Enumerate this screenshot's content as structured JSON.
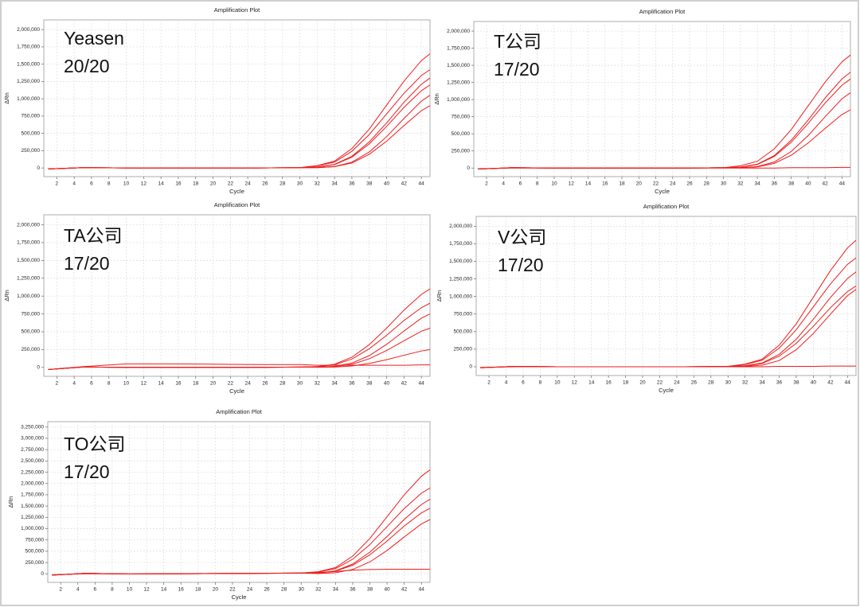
{
  "chart_data": [
    {
      "type": "line",
      "title": "Amplification Plot",
      "x_label": "Cycle",
      "y_label": "ΔRn",
      "annotations": [
        "Yeasen",
        "20/20"
      ],
      "xlim": [
        0.5,
        45
      ],
      "ylim": [
        -125000,
        2140000
      ],
      "grid": true,
      "xticks": [
        2,
        4,
        6,
        8,
        10,
        12,
        14,
        16,
        18,
        20,
        22,
        24,
        26,
        28,
        30,
        32,
        34,
        36,
        38,
        40,
        42,
        44
      ],
      "yticks": [
        0,
        {
          "value": 250000,
          "label": "250,000"
        },
        {
          "value": 500000,
          "label": "500,000"
        },
        {
          "value": 750000,
          "label": "750,000"
        },
        {
          "value": 1000000,
          "label": "1,000,000"
        },
        {
          "value": 1250000,
          "label": "1,250,000"
        },
        {
          "value": 1500000,
          "label": "1,500,000"
        },
        {
          "value": 1750000,
          "label": "1,750,000"
        },
        {
          "value": 2000000,
          "label": "2,000,000"
        }
      ],
      "x": [
        1,
        5,
        10,
        15,
        20,
        25,
        30,
        32,
        34,
        36,
        38,
        40,
        42,
        44,
        45
      ],
      "series": [
        {
          "color": "#ee1c1c",
          "values": [
            -15000,
            5000,
            0,
            0,
            0,
            0,
            5000,
            33000,
            99000,
            280000,
            561000,
            908000,
            1254000,
            1551000,
            1650000
          ]
        },
        {
          "color": "#ee1c1c",
          "values": [
            -15000,
            5000,
            0,
            0,
            0,
            0,
            5000,
            28000,
            85000,
            241000,
            483000,
            781000,
            1079000,
            1335000,
            1420000
          ]
        },
        {
          "color": "#ee1c1c",
          "values": [
            -15000,
            5000,
            0,
            0,
            0,
            0,
            5000,
            13000,
            52000,
            169000,
            377000,
            650000,
            949000,
            1209000,
            1300000
          ]
        },
        {
          "color": "#ee1c1c",
          "values": [
            -15000,
            5000,
            0,
            0,
            0,
            0,
            5000,
            12000,
            48000,
            156000,
            348000,
            600000,
            876000,
            1116000,
            1200000
          ]
        },
        {
          "color": "#ee1c1c",
          "values": [
            -15000,
            5000,
            0,
            0,
            0,
            0,
            5000,
            5000,
            21000,
            84000,
            231000,
            452000,
            714000,
            966000,
            1050000
          ]
        },
        {
          "color": "#ee1c1c",
          "values": [
            -15000,
            5000,
            0,
            0,
            0,
            0,
            5000,
            4500,
            18000,
            72000,
            198000,
            387000,
            612000,
            828000,
            900000
          ]
        }
      ]
    },
    {
      "type": "line",
      "title": "Amplification Plot",
      "x_label": "Cycle",
      "y_label": "ΔRn",
      "annotations": [
        "T公司",
        "17/20"
      ],
      "xlim": [
        0.5,
        45
      ],
      "ylim": [
        -125000,
        2140000
      ],
      "grid": true,
      "xticks": [
        2,
        4,
        6,
        8,
        10,
        12,
        14,
        16,
        18,
        20,
        22,
        24,
        26,
        28,
        30,
        32,
        34,
        36,
        38,
        40,
        42,
        44
      ],
      "yticks": [
        0,
        {
          "value": 250000,
          "label": "250,000"
        },
        {
          "value": 500000,
          "label": "500,000"
        },
        {
          "value": 750000,
          "label": "750,000"
        },
        {
          "value": 1000000,
          "label": "1,000,000"
        },
        {
          "value": 1250000,
          "label": "1,250,000"
        },
        {
          "value": 1500000,
          "label": "1,500,000"
        },
        {
          "value": 1750000,
          "label": "1,750,000"
        },
        {
          "value": 2000000,
          "label": "2,000,000"
        }
      ],
      "x": [
        1,
        5,
        10,
        15,
        20,
        25,
        30,
        32,
        34,
        36,
        38,
        40,
        42,
        44,
        45
      ],
      "series": [
        {
          "color": "#ee1c1c",
          "values": [
            -15000,
            5000,
            0,
            0,
            0,
            0,
            5000,
            33000,
            99000,
            280000,
            561000,
            908000,
            1254000,
            1551000,
            1650000
          ]
        },
        {
          "color": "#ee1c1c",
          "values": [
            -15000,
            5000,
            0,
            0,
            0,
            0,
            5000,
            14000,
            56000,
            182000,
            406000,
            700000,
            1022000,
            1302000,
            1400000
          ]
        },
        {
          "color": "#ee1c1c",
          "values": [
            -15000,
            5000,
            0,
            0,
            0,
            0,
            5000,
            13000,
            52000,
            169000,
            377000,
            650000,
            949000,
            1209000,
            1300000
          ]
        },
        {
          "color": "#ee1c1c",
          "values": [
            -15000,
            5000,
            0,
            0,
            0,
            0,
            5000,
            5500,
            22000,
            88000,
            242000,
            473000,
            748000,
            1012000,
            1100000
          ]
        },
        {
          "color": "#ee1c1c",
          "values": [
            -15000,
            5000,
            0,
            0,
            0,
            0,
            5000,
            4250,
            17000,
            68000,
            187000,
            366000,
            578000,
            782000,
            850000
          ]
        },
        {
          "color": "#ee1c1c",
          "values": [
            -10000,
            0,
            0,
            0,
            0,
            0,
            0,
            0,
            0,
            0,
            5000,
            5000,
            5000,
            10000,
            10000
          ]
        }
      ]
    },
    {
      "type": "line",
      "title": "Amplification Plot",
      "x_label": "Cycle",
      "y_label": "ΔRn",
      "annotations": [
        "TA公司",
        "17/20"
      ],
      "xlim": [
        0.5,
        45
      ],
      "ylim": [
        -125000,
        2140000
      ],
      "grid": true,
      "xticks": [
        2,
        4,
        6,
        8,
        10,
        12,
        14,
        16,
        18,
        20,
        22,
        24,
        26,
        28,
        30,
        32,
        34,
        36,
        38,
        40,
        42,
        44
      ],
      "yticks": [
        0,
        {
          "value": 250000,
          "label": "250,000"
        },
        {
          "value": 500000,
          "label": "500,000"
        },
        {
          "value": 750000,
          "label": "750,000"
        },
        {
          "value": 1000000,
          "label": "1,000,000"
        },
        {
          "value": 1250000,
          "label": "1,250,000"
        },
        {
          "value": 1500000,
          "label": "1,500,000"
        },
        {
          "value": 1750000,
          "label": "1,750,000"
        },
        {
          "value": 2000000,
          "label": "2,000,000"
        }
      ],
      "x": [
        1,
        5,
        10,
        15,
        20,
        25,
        30,
        32,
        34,
        36,
        38,
        40,
        42,
        44,
        45
      ],
      "series": [
        {
          "color": "#ee1c1c",
          "values": [
            -30000,
            5000,
            0,
            0,
            0,
            0,
            5000,
            11000,
            44000,
            143000,
            319000,
            550000,
            803000,
            1023000,
            1100000
          ]
        },
        {
          "color": "#ee1c1c",
          "values": [
            -30000,
            5000,
            0,
            0,
            0,
            0,
            5000,
            9000,
            36000,
            117000,
            261000,
            450000,
            657000,
            837000,
            900000
          ]
        },
        {
          "color": "#ee1c1c",
          "values": [
            -30000,
            5000,
            0,
            0,
            0,
            0,
            5000,
            3750,
            15000,
            60000,
            165000,
            323000,
            510000,
            690000,
            750000
          ]
        },
        {
          "color": "#ee1c1c",
          "values": [
            -30000,
            5000,
            0,
            0,
            0,
            0,
            5000,
            2750,
            11000,
            44000,
            121000,
            237000,
            374000,
            506000,
            550000
          ]
        },
        {
          "color": "#ee1c1c",
          "values": [
            -30000,
            5000,
            0,
            0,
            0,
            0,
            5000,
            1250,
            5000,
            20000,
            55000,
            108000,
            170000,
            230000,
            250000
          ]
        },
        {
          "color": "#ee1c1c",
          "values": [
            -30000,
            10000,
            50000,
            50000,
            45000,
            40000,
            40000,
            30000,
            30000,
            30000,
            30000,
            30000,
            30000,
            35000,
            35000
          ]
        }
      ]
    },
    {
      "type": "line",
      "title": "Amplification Plot",
      "x_label": "Cycle",
      "y_label": "ΔRn",
      "annotations": [
        "V公司",
        "17/20"
      ],
      "xlim": [
        0.5,
        45
      ],
      "ylim": [
        -125000,
        2140000
      ],
      "grid": true,
      "xticks": [
        2,
        4,
        6,
        8,
        10,
        12,
        14,
        16,
        18,
        20,
        22,
        24,
        26,
        28,
        30,
        32,
        34,
        36,
        38,
        40,
        42,
        44
      ],
      "yticks": [
        0,
        {
          "value": 250000,
          "label": "250,000"
        },
        {
          "value": 500000,
          "label": "500,000"
        },
        {
          "value": 750000,
          "label": "750,000"
        },
        {
          "value": 1000000,
          "label": "1,000,000"
        },
        {
          "value": 1250000,
          "label": "1,250,000"
        },
        {
          "value": 1500000,
          "label": "1,500,000"
        },
        {
          "value": 1750000,
          "label": "1,750,000"
        },
        {
          "value": 2000000,
          "label": "2,000,000"
        }
      ],
      "x": [
        1,
        5,
        10,
        15,
        20,
        25,
        30,
        32,
        34,
        36,
        38,
        40,
        42,
        44,
        45
      ],
      "series": [
        {
          "color": "#ee1c1c",
          "values": [
            -15000,
            5000,
            0,
            0,
            0,
            0,
            5000,
            36000,
            108000,
            306000,
            612000,
            990000,
            1368000,
            1692000,
            1800000
          ]
        },
        {
          "color": "#ee1c1c",
          "values": [
            -15000,
            5000,
            0,
            0,
            0,
            0,
            5000,
            31000,
            93000,
            264000,
            527000,
            853000,
            1178000,
            1457000,
            1550000
          ]
        },
        {
          "color": "#ee1c1c",
          "values": [
            -15000,
            5000,
            0,
            0,
            0,
            0,
            5000,
            13500,
            54000,
            176000,
            392000,
            675000,
            986000,
            1256000,
            1350000
          ]
        },
        {
          "color": "#ee1c1c",
          "values": [
            -15000,
            5000,
            0,
            0,
            0,
            0,
            5000,
            11500,
            46000,
            150000,
            334000,
            575000,
            840000,
            1070000,
            1150000
          ]
        },
        {
          "color": "#ee1c1c",
          "values": [
            -15000,
            5000,
            0,
            0,
            0,
            0,
            5000,
            5500,
            22000,
            88000,
            242000,
            473000,
            748000,
            1012000,
            1100000
          ]
        },
        {
          "color": "#ee1c1c",
          "values": [
            -10000,
            0,
            0,
            0,
            0,
            0,
            0,
            0,
            0,
            5000,
            5000,
            5000,
            10000,
            10000,
            10000
          ]
        }
      ]
    },
    {
      "type": "line",
      "title": "Amplification Plot",
      "x_label": "Cycle",
      "y_label": "ΔRn",
      "annotations": [
        "TO公司",
        "17/20"
      ],
      "xlim": [
        0.5,
        45
      ],
      "ylim": [
        -190000,
        3370000
      ],
      "grid": true,
      "xticks": [
        2,
        4,
        6,
        8,
        10,
        12,
        14,
        16,
        18,
        20,
        22,
        24,
        26,
        28,
        30,
        32,
        34,
        36,
        38,
        40,
        42,
        44
      ],
      "yticks": [
        0,
        {
          "value": 250000,
          "label": "250,000"
        },
        {
          "value": 500000,
          "label": "500,000"
        },
        {
          "value": 750000,
          "label": "750,000"
        },
        {
          "value": 1000000,
          "label": "1,000,000"
        },
        {
          "value": 1250000,
          "label": "1,250,000"
        },
        {
          "value": 1500000,
          "label": "1,500,000"
        },
        {
          "value": 1750000,
          "label": "1,750,000"
        },
        {
          "value": 2000000,
          "label": "2,000,000"
        },
        {
          "value": 2250000,
          "label": "2,250,000"
        },
        {
          "value": 2500000,
          "label": "2,500,000"
        },
        {
          "value": 2750000,
          "label": "2,750,000"
        },
        {
          "value": 3000000,
          "label": "3,000,000"
        },
        {
          "value": 3250000,
          "label": "3,250,000"
        }
      ],
      "x": [
        1,
        5,
        10,
        15,
        20,
        25,
        30,
        32,
        34,
        36,
        38,
        40,
        42,
        44,
        45
      ],
      "series": [
        {
          "color": "#ee1c1c",
          "values": [
            -30000,
            10000,
            -5000,
            0,
            5000,
            10000,
            15000,
            46000,
            138000,
            391000,
            782000,
            1265000,
            1748000,
            2162000,
            2300000
          ]
        },
        {
          "color": "#ee1c1c",
          "values": [
            -30000,
            10000,
            -5000,
            0,
            5000,
            10000,
            15000,
            38000,
            114000,
            323000,
            646000,
            1045000,
            1444000,
            1786000,
            1900000
          ]
        },
        {
          "color": "#ee1c1c",
          "values": [
            -30000,
            10000,
            -5000,
            0,
            5000,
            10000,
            15000,
            16500,
            66000,
            215000,
            479000,
            825000,
            1205000,
            1535000,
            1650000
          ]
        },
        {
          "color": "#ee1c1c",
          "values": [
            -30000,
            10000,
            -5000,
            0,
            5000,
            10000,
            15000,
            14500,
            58000,
            189000,
            421000,
            725000,
            1059000,
            1349000,
            1450000
          ]
        },
        {
          "color": "#ee1c1c",
          "values": [
            -30000,
            10000,
            -5000,
            0,
            5000,
            10000,
            15000,
            6000,
            24000,
            96000,
            264000,
            516000,
            816000,
            1104000,
            1200000
          ]
        },
        {
          "color": "#ee1c1c",
          "values": [
            -20000,
            0,
            0,
            0,
            10000,
            10000,
            20000,
            30000,
            50000,
            80000,
            95000,
            100000,
            100000,
            100000,
            100000
          ]
        }
      ]
    }
  ]
}
